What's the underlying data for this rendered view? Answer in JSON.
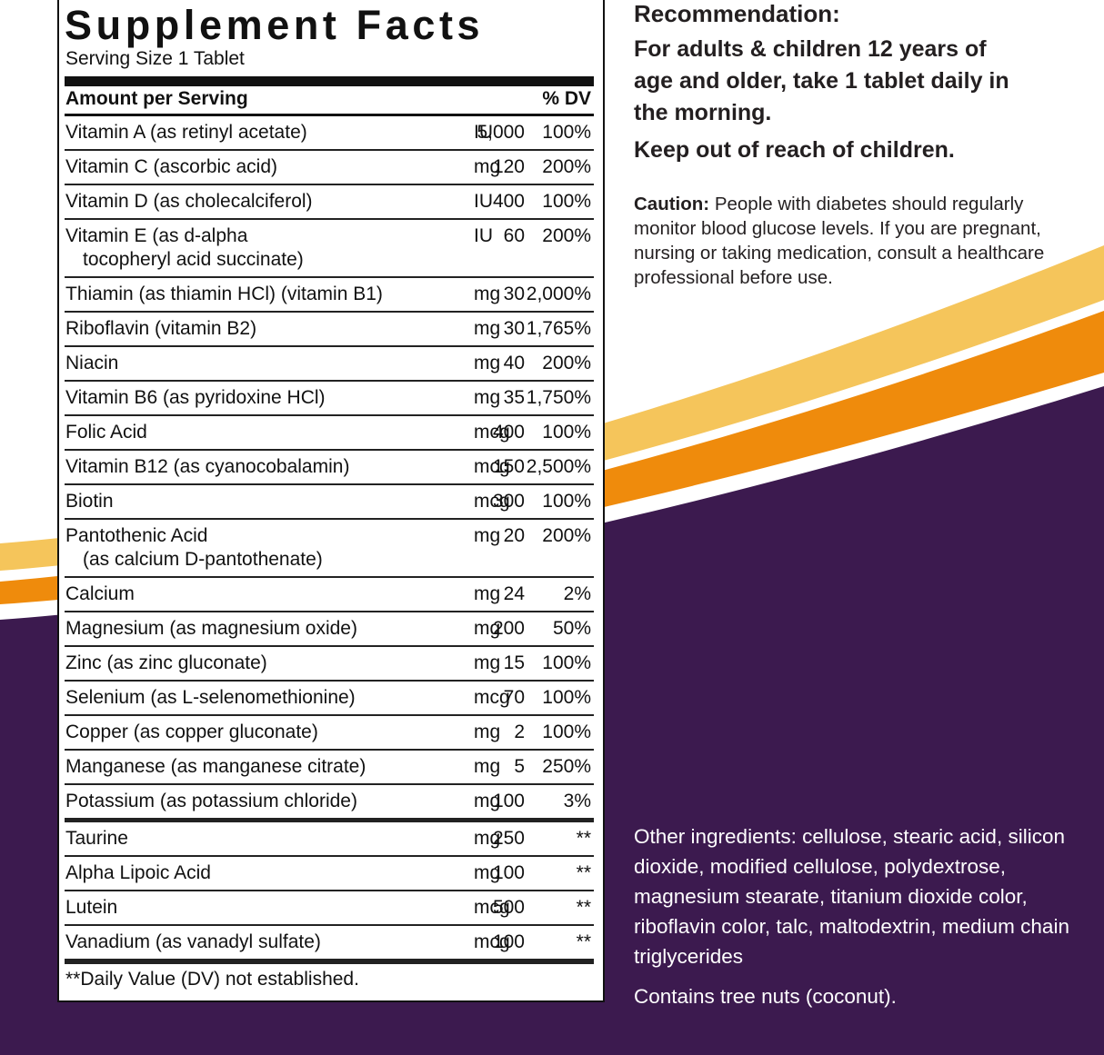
{
  "supplement_facts": {
    "title": "Supplement Facts",
    "serving_size": "Serving Size 1 Tablet",
    "header": {
      "amount": "Amount per Serving",
      "dv": "% DV"
    },
    "rows": [
      {
        "name": [
          "Vitamin A (as retinyl acetate)"
        ],
        "amount": "5,000",
        "unit": "IU",
        "dv": "100%"
      },
      {
        "name": [
          "Vitamin C (ascorbic acid)"
        ],
        "amount": "120",
        "unit": "mg",
        "dv": "200%"
      },
      {
        "name": [
          "Vitamin D (as cholecalciferol)"
        ],
        "amount": "400",
        "unit": "IU",
        "dv": "100%"
      },
      {
        "name": [
          "Vitamin E (as d-alpha",
          "tocopheryl acid succinate)"
        ],
        "amount": "60",
        "unit": "IU",
        "dv": "200%"
      },
      {
        "name": [
          "Thiamin (as thiamin HCl) (vitamin B1)"
        ],
        "amount": "30",
        "unit": "mg",
        "dv": "2,000%"
      },
      {
        "name": [
          "Riboflavin (vitamin B2)"
        ],
        "amount": "30",
        "unit": "mg",
        "dv": "1,765%"
      },
      {
        "name": [
          "Niacin"
        ],
        "amount": "40",
        "unit": "mg",
        "dv": "200%"
      },
      {
        "name": [
          "Vitamin B6 (as pyridoxine HCl)"
        ],
        "amount": "35",
        "unit": "mg",
        "dv": "1,750%"
      },
      {
        "name": [
          "Folic Acid"
        ],
        "amount": "400",
        "unit": "mcg",
        "dv": "100%"
      },
      {
        "name": [
          "Vitamin B12 (as cyanocobalamin)"
        ],
        "amount": "150",
        "unit": "mcg",
        "dv": "2,500%"
      },
      {
        "name": [
          "Biotin"
        ],
        "amount": "300",
        "unit": "mcg",
        "dv": "100%"
      },
      {
        "name": [
          "Pantothenic Acid",
          "(as calcium D-pantothenate)"
        ],
        "amount": "20",
        "unit": "mg",
        "dv": "200%"
      },
      {
        "name": [
          "Calcium"
        ],
        "amount": "24",
        "unit": "mg",
        "dv": "2%"
      },
      {
        "name": [
          "Magnesium (as magnesium oxide)"
        ],
        "amount": "200",
        "unit": "mg",
        "dv": "50%"
      },
      {
        "name": [
          "Zinc (as zinc gluconate)"
        ],
        "amount": "15",
        "unit": "mg",
        "dv": "100%"
      },
      {
        "name": [
          "Selenium (as L-selenomethionine)"
        ],
        "amount": "70",
        "unit": "mcg",
        "dv": "100%"
      },
      {
        "name": [
          "Copper (as copper gluconate)"
        ],
        "amount": "2",
        "unit": "mg",
        "dv": "100%"
      },
      {
        "name": [
          "Manganese (as manganese citrate)"
        ],
        "amount": "5",
        "unit": "mg",
        "dv": "250%"
      },
      {
        "name": [
          "Potassium (as potassium chloride)"
        ],
        "amount": "100",
        "unit": "mg",
        "dv": "3%"
      }
    ],
    "other_rows": [
      {
        "name": [
          "Taurine"
        ],
        "amount": "250",
        "unit": "mg",
        "dv": "**"
      },
      {
        "name": [
          "Alpha Lipoic Acid"
        ],
        "amount": "100",
        "unit": "mg",
        "dv": "**"
      },
      {
        "name": [
          "Lutein"
        ],
        "amount": "500",
        "unit": "mcg",
        "dv": "**"
      },
      {
        "name": [
          "Vanadium (as vanadyl sulfate)"
        ],
        "amount": "100",
        "unit": "mcg",
        "dv": "**"
      }
    ],
    "footnote": "**Daily Value (DV) not established."
  },
  "recommendation": {
    "title": "Recommendation:",
    "text": "For adults & children 12 years of age and older, take 1 tablet daily in the morning.",
    "warning": "Keep out of reach of children."
  },
  "caution": {
    "label": "Caution:",
    "text": "People with diabetes should regularly monitor blood glucose levels. If you are pregnant, nursing or taking medication, consult a healthcare professional before use."
  },
  "other_ingredients": "Other ingredients: cellulose, stearic acid, silicon dioxide, modified cellulose, polydextrose, magnesium stearate, titanium dioxide color, riboflavin color, talc, maltodextrin, medium chain triglycerides",
  "allergen": "Contains tree nuts (coconut)."
}
